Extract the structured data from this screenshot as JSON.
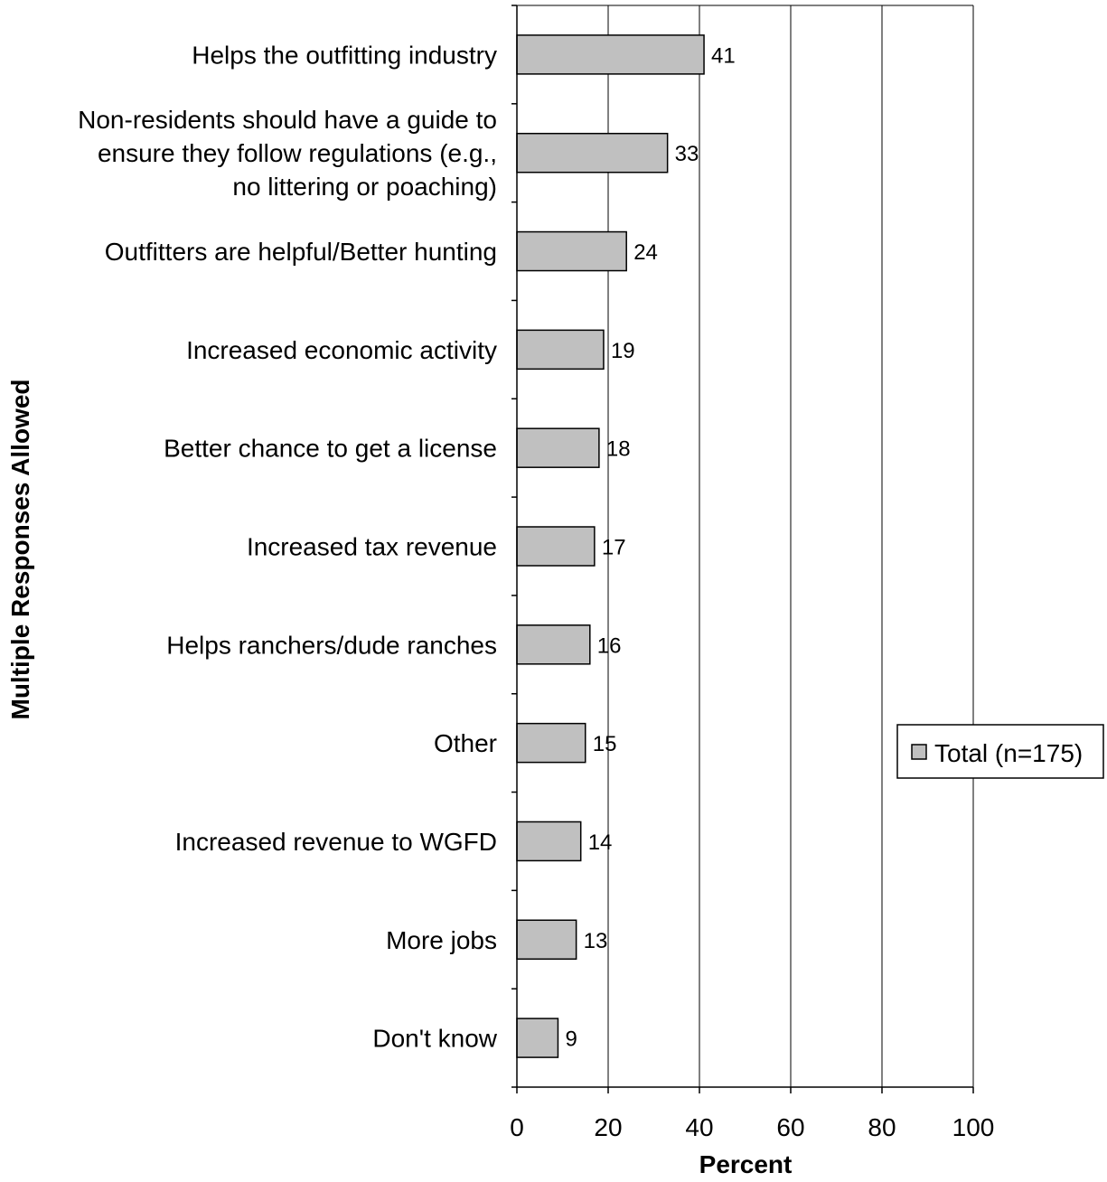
{
  "chart_data": {
    "type": "bar",
    "orientation": "horizontal",
    "categories": [
      [
        "Helps the outfitting industry"
      ],
      [
        "Non-residents should have a guide to",
        "ensure they follow regulations  (e.g.,",
        "no littering or poaching)"
      ],
      [
        "Outfitters are helpful/Better hunting"
      ],
      [
        "Increased economic activity"
      ],
      [
        "Better chance to get a license"
      ],
      [
        "Increased tax revenue"
      ],
      [
        "Helps ranchers/dude ranches"
      ],
      [
        "Other"
      ],
      [
        "Increased revenue to WGFD"
      ],
      [
        "More jobs"
      ],
      [
        "Don't know"
      ]
    ],
    "series": [
      {
        "name": "Total (n=175)",
        "color": "#c0c0c0",
        "values": [
          41,
          33,
          24,
          19,
          18,
          17,
          16,
          15,
          14,
          13,
          9
        ]
      }
    ],
    "data_labels": [
      "41",
      "33",
      "24",
      "19",
      "18",
      "17",
      "16",
      "15",
      "14",
      "13",
      "9"
    ],
    "xlabel": "Percent",
    "ylabel": "Multiple Responses Allowed",
    "xlim": [
      0,
      100
    ],
    "xticks": [
      0,
      20,
      40,
      60,
      80,
      100
    ],
    "xtick_labels": [
      "0",
      "20",
      "40",
      "60",
      "80",
      "100"
    ],
    "grid": "vertical",
    "legend_position": "right"
  }
}
